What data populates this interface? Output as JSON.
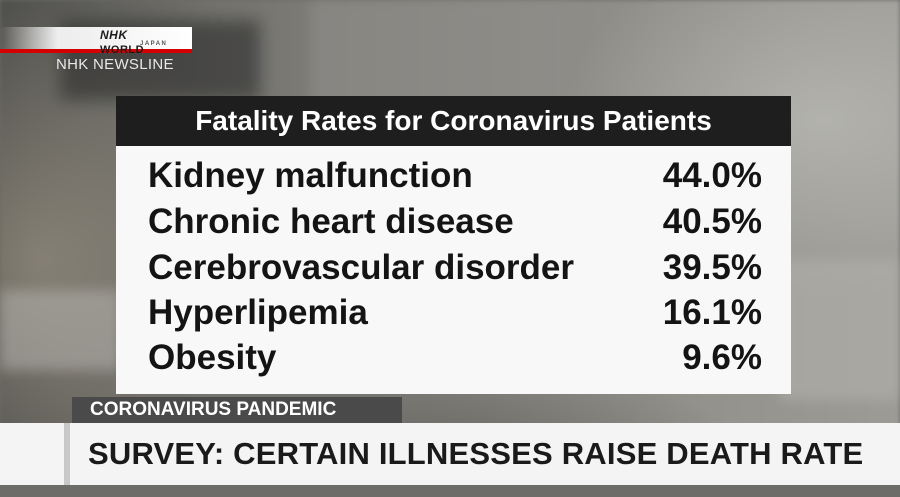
{
  "broadcaster": {
    "logo_brand": "NHK",
    "logo_world": "WORLD",
    "logo_sub": "JAPAN",
    "program": "NHK NEWSLINE",
    "colors": {
      "logo_red": "#d40000"
    }
  },
  "panel": {
    "title": "Fatality Rates for Coronavirus Patients",
    "rows": [
      {
        "label": "Kidney malfunction",
        "value": "44.0%"
      },
      {
        "label": "Chronic heart disease",
        "value": "40.5%"
      },
      {
        "label": "Cerebrovascular disorder",
        "value": "39.5%"
      },
      {
        "label": "Hyperlipemia",
        "value": "16.1%"
      },
      {
        "label": "Obesity",
        "value": "9.6%"
      }
    ]
  },
  "lower_third": {
    "category": "CORONAVIRUS PANDEMIC",
    "headline": "SURVEY: CERTAIN ILLNESSES RAISE DEATH RATE"
  }
}
